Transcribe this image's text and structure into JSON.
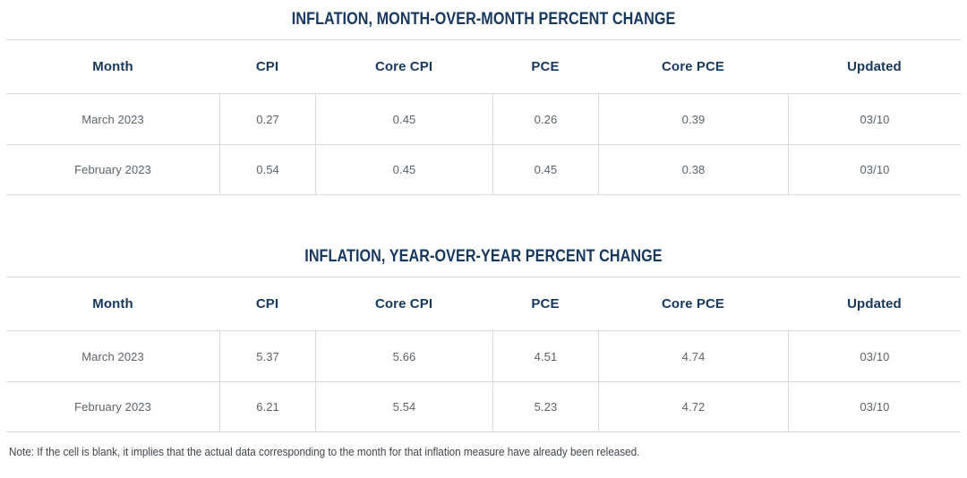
{
  "colors": {
    "accent_navy": "#16375e",
    "data_text": "#5b6369",
    "border": "#d9d9d9",
    "note_text": "#3d444b"
  },
  "chart_data": [
    {
      "type": "table",
      "title": "INFLATION, MONTH-OVER-MONTH PERCENT CHANGE",
      "columns": [
        "Month",
        "CPI",
        "Core CPI",
        "PCE",
        "Core PCE",
        "Updated"
      ],
      "rows": [
        [
          "March 2023",
          "0.27",
          "0.45",
          "0.26",
          "0.39",
          "03/10"
        ],
        [
          "February 2023",
          "0.54",
          "0.45",
          "0.45",
          "0.38",
          "03/10"
        ]
      ]
    },
    {
      "type": "table",
      "title": "INFLATION, YEAR-OVER-YEAR PERCENT CHANGE",
      "columns": [
        "Month",
        "CPI",
        "Core CPI",
        "PCE",
        "Core PCE",
        "Updated"
      ],
      "rows": [
        [
          "March 2023",
          "5.37",
          "5.66",
          "4.51",
          "4.74",
          "03/10"
        ],
        [
          "February 2023",
          "6.21",
          "5.54",
          "5.23",
          "4.72",
          "03/10"
        ]
      ]
    }
  ],
  "note": "Note: If the cell is blank, it implies that the actual data corresponding to the month for that inflation measure have already been released."
}
